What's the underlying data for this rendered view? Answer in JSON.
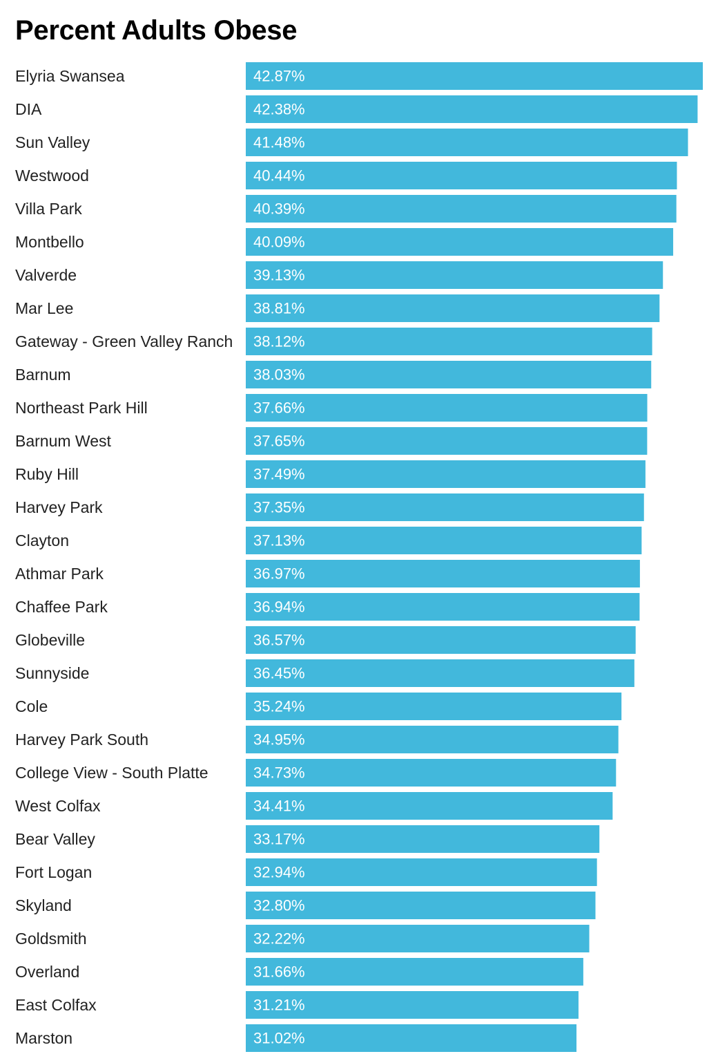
{
  "chart_data": {
    "type": "bar",
    "orientation": "horizontal",
    "title": "Percent Adults Obese",
    "bar_color": "#42b8dc",
    "value_suffix": "%",
    "categories": [
      "Elyria Swansea",
      "DIA",
      "Sun Valley",
      "Westwood",
      "Villa Park",
      "Montbello",
      "Valverde",
      "Mar Lee",
      "Gateway - Green Valley Ranch",
      "Barnum",
      "Northeast Park Hill",
      "Barnum West",
      "Ruby Hill",
      "Harvey Park",
      "Clayton",
      "Athmar Park",
      "Chaffee Park",
      "Globeville",
      "Sunnyside",
      "Cole",
      "Harvey Park South",
      "College View - South Platte",
      "West Colfax",
      "Bear Valley",
      "Fort Logan",
      "Skyland",
      "Goldsmith",
      "Overland",
      "East Colfax",
      "Marston"
    ],
    "values": [
      42.87,
      42.38,
      41.48,
      40.44,
      40.39,
      40.09,
      39.13,
      38.81,
      38.12,
      38.03,
      37.66,
      37.65,
      37.49,
      37.35,
      37.13,
      36.97,
      36.94,
      36.57,
      36.45,
      35.24,
      34.95,
      34.73,
      34.41,
      33.17,
      32.94,
      32.8,
      32.22,
      31.66,
      31.21,
      31.02
    ],
    "value_labels": [
      "42.87%",
      "42.38%",
      "41.48%",
      "40.44%",
      "40.39%",
      "40.09%",
      "39.13%",
      "38.81%",
      "38.12%",
      "38.03%",
      "37.66%",
      "37.65%",
      "37.49%",
      "37.35%",
      "37.13%",
      "36.97%",
      "36.94%",
      "36.57%",
      "36.45%",
      "35.24%",
      "34.95%",
      "34.73%",
      "34.41%",
      "33.17%",
      "32.94%",
      "32.80%",
      "32.22%",
      "31.66%",
      "31.21%",
      "31.02%"
    ],
    "xlim": [
      0,
      42.87
    ],
    "grid": false,
    "legend": "none"
  }
}
